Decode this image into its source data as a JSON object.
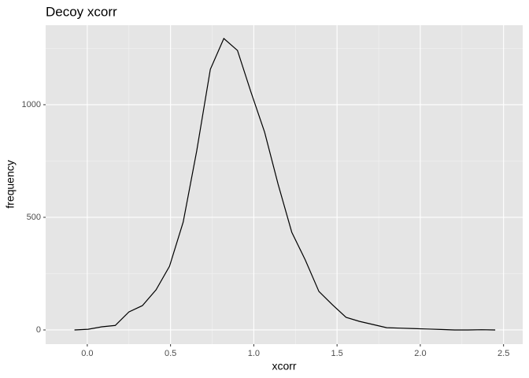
{
  "chart_data": {
    "type": "line",
    "title": "Decoy xcorr",
    "x_label": "xcorr",
    "y_label": "frequency",
    "x": [
      -0.077,
      0.005,
      0.087,
      0.168,
      0.25,
      0.331,
      0.413,
      0.494,
      0.576,
      0.657,
      0.739,
      0.82,
      0.902,
      0.983,
      1.065,
      1.146,
      1.228,
      1.309,
      1.391,
      1.472,
      1.554,
      1.635,
      1.717,
      1.798,
      1.88,
      1.961,
      2.043,
      2.124,
      2.206,
      2.287,
      2.369,
      2.45
    ],
    "values": [
      0,
      3,
      14,
      20,
      80,
      108,
      178,
      283,
      479,
      794,
      1157,
      1294,
      1241,
      1056,
      878,
      647,
      434,
      311,
      171,
      112,
      56,
      38,
      24,
      10,
      8,
      6,
      4,
      2,
      0,
      0,
      1,
      0
    ],
    "color": "#000000",
    "xlim": [
      -0.25,
      2.615
    ],
    "ylim": [
      -63,
      1353
    ],
    "xticks": [
      {
        "value": 0,
        "label": "0.0"
      },
      0.5,
      {
        "value": 1,
        "label": "1.0"
      },
      1.5,
      {
        "value": 2,
        "label": "2.0"
      },
      2.5
    ],
    "yticks": [
      0,
      500,
      1000
    ],
    "x_minor_ticks": [
      0.25,
      0.75,
      1.25,
      1.75,
      2.25
    ],
    "y_minor_ticks": [
      250,
      750,
      1250
    ],
    "grid": true
  }
}
